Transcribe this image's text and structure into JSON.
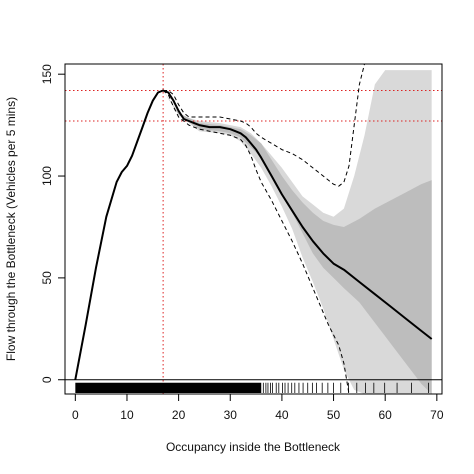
{
  "chart_data": {
    "type": "line",
    "title": "",
    "xlabel": "Occupancy inside the Bottleneck",
    "ylabel": "Flow through the Bottleneck (Vehicles per 5 mins)",
    "xlim": [
      -2,
      71
    ],
    "ylim": [
      -7,
      155
    ],
    "x_ticks": [
      0,
      10,
      20,
      30,
      40,
      50,
      60,
      70
    ],
    "y_ticks": [
      0,
      50,
      100,
      150
    ],
    "grid": false,
    "reference_lines": {
      "horizontal": [
        142,
        127
      ],
      "vertical": [
        17
      ],
      "zero_line": 0,
      "color": "#dd2222",
      "style": "dotted"
    },
    "series": [
      {
        "style": "solid",
        "color": "#000000",
        "x": [
          0,
          2,
          4,
          6,
          8,
          9,
          10,
          11,
          12,
          13,
          14,
          15,
          16,
          17,
          18,
          19,
          20,
          21,
          22,
          23,
          24,
          25,
          26,
          28,
          30,
          31,
          32,
          33,
          34,
          35,
          36,
          38,
          40,
          42,
          44,
          46,
          48,
          50,
          52,
          55,
          58,
          61,
          64,
          67,
          69
        ],
        "y": [
          0,
          27,
          55,
          80,
          97,
          102,
          105,
          110,
          117,
          124,
          131,
          137,
          141,
          142,
          141,
          137,
          132,
          128,
          127,
          126,
          125,
          124.5,
          124,
          124,
          123,
          122,
          121,
          119,
          116,
          113,
          109,
          100,
          91,
          83,
          75,
          68,
          62,
          57,
          54,
          48,
          42,
          36,
          30,
          24,
          20
        ]
      },
      {
        "style": "dashed",
        "color": "#000000",
        "x": [
          17,
          18,
          19,
          20,
          21,
          22,
          24,
          26,
          28,
          30,
          32,
          33,
          34,
          35,
          36,
          38,
          40,
          42,
          44,
          46,
          48,
          50,
          51,
          52,
          53,
          54,
          55,
          56
        ],
        "y": [
          142,
          142,
          140,
          135,
          131,
          129,
          129,
          129,
          129,
          128,
          127,
          126,
          124,
          121,
          119,
          116,
          113,
          111,
          108,
          104,
          100,
          96,
          95,
          97,
          105,
          125,
          145,
          155
        ]
      },
      {
        "style": "dashed",
        "color": "#000000",
        "x": [
          17,
          18,
          19,
          20,
          22,
          24,
          26,
          28,
          30,
          32,
          33,
          34,
          35,
          36,
          38,
          40,
          42,
          44,
          46,
          48,
          49,
          50,
          51,
          52,
          53
        ],
        "y": [
          142,
          140,
          134,
          129,
          125,
          123,
          122,
          121,
          120,
          118,
          115,
          110,
          103,
          97,
          88,
          78,
          68,
          57,
          45,
          33,
          27,
          22,
          17,
          8,
          -7
        ]
      }
    ],
    "bands": [
      {
        "fill": "#d9d9d9",
        "x": [
          17,
          20,
          24,
          28,
          30,
          32,
          34,
          36,
          38,
          40,
          42,
          44,
          46,
          48,
          50,
          52,
          54,
          56,
          58,
          60,
          62,
          64,
          66,
          69
        ],
        "upper": [
          142,
          130,
          127,
          126,
          125,
          124,
          121,
          116,
          110,
          104,
          97,
          90,
          86,
          82,
          80,
          84,
          100,
          120,
          145,
          152,
          152,
          152,
          152,
          152
        ],
        "lower": [
          142,
          130,
          122,
          121,
          120,
          117,
          111,
          104,
          95,
          85,
          74,
          60,
          48,
          35,
          20,
          5,
          -5,
          -7,
          -7,
          -7,
          -7,
          -7,
          -7,
          -7
        ]
      },
      {
        "fill": "#bdbdbd",
        "x": [
          17,
          20,
          24,
          28,
          30,
          32,
          34,
          36,
          38,
          40,
          42,
          44,
          46,
          48,
          50,
          52,
          55,
          58,
          61,
          64,
          67,
          69
        ],
        "upper": [
          142,
          131,
          126,
          125,
          124,
          123,
          120,
          116,
          108,
          100,
          93,
          87,
          82,
          78,
          76,
          75,
          79,
          84,
          88,
          92,
          96,
          98
        ],
        "lower": [
          142,
          130,
          123,
          122,
          121,
          119,
          114,
          109,
          100,
          91,
          82,
          72,
          62,
          55,
          50,
          45,
          38,
          28,
          18,
          8,
          -2,
          -7
        ]
      }
    ],
    "rug": {
      "color": "#000000",
      "dense_range": [
        0,
        36
      ],
      "sparse_positions": [
        36.4,
        36.9,
        37.3,
        37.8,
        38.2,
        38.9,
        39.4,
        40.1,
        40.6,
        41.2,
        41.9,
        42.5,
        43.3,
        44.1,
        45.0,
        45.9,
        46.7,
        47.8,
        48.9,
        50.0,
        51.4,
        52.9,
        54.5,
        56.2,
        57.8,
        59.9,
        62.3,
        65.1,
        68.4
      ]
    }
  }
}
